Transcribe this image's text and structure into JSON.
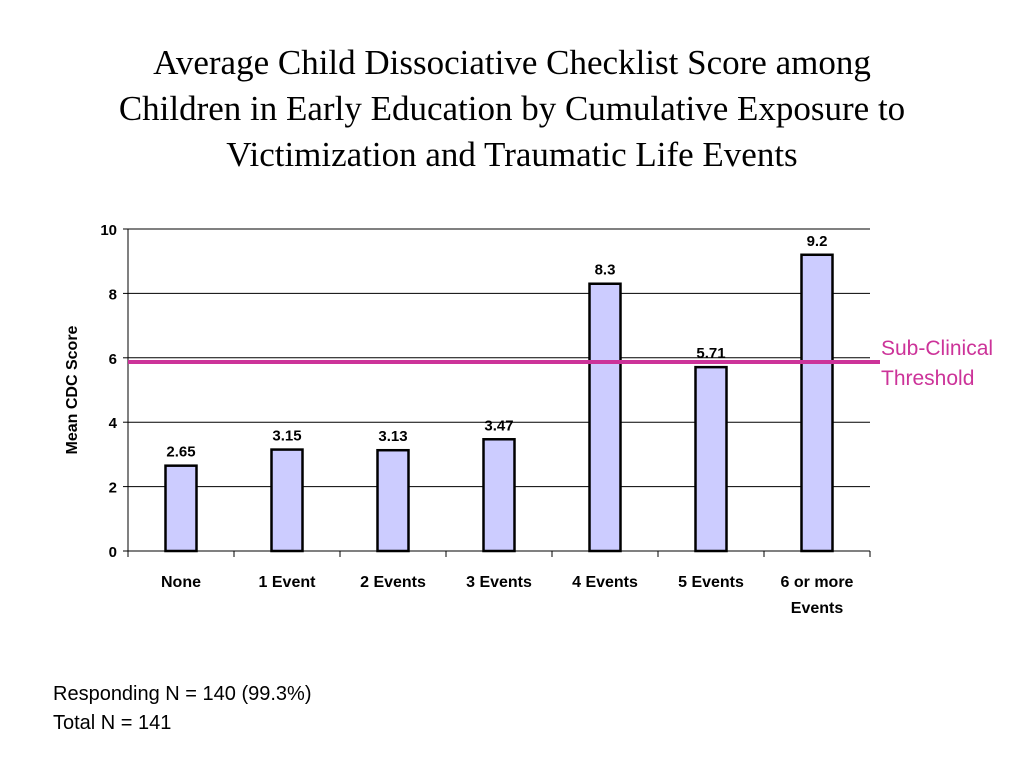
{
  "title_lines": [
    "Average Child Dissociative Checklist Score among",
    "Children in Early Education by Cumulative Exposure to",
    "Victimization and Traumatic Life Events"
  ],
  "chart_data": {
    "type": "bar",
    "title": "Average Child Dissociative Checklist Score among Children in Early Education by Cumulative Exposure to Victimization and Traumatic Life Events",
    "xlabel": "",
    "ylabel": "Mean CDC Score",
    "categories": [
      "None",
      "1 Event",
      "2 Events",
      "3 Events",
      "4 Events",
      "5 Events",
      "6 or more Events"
    ],
    "category_lines": [
      [
        "None"
      ],
      [
        "1 Event"
      ],
      [
        "2 Events"
      ],
      [
        "3 Events"
      ],
      [
        "4 Events"
      ],
      [
        "5 Events"
      ],
      [
        "6 or more",
        "Events"
      ]
    ],
    "values": [
      2.65,
      3.15,
      3.13,
      3.47,
      8.3,
      5.71,
      9.2
    ],
    "value_labels": [
      "2.65",
      "3.15",
      "3.13",
      "3.47",
      "8.3",
      "5.71",
      "9.2"
    ],
    "ylim": [
      0,
      10
    ],
    "yticks": [
      0,
      2,
      4,
      6,
      8,
      10
    ],
    "grid": true,
    "bar_color": "#ccccff",
    "threshold": {
      "value": 5.87,
      "label_lines": [
        "Sub-Clinical",
        "Threshold"
      ],
      "color": "#cc3399"
    }
  },
  "footnotes": {
    "responding": "Responding N = 140 (99.3%)",
    "total": "Total N = 141"
  }
}
